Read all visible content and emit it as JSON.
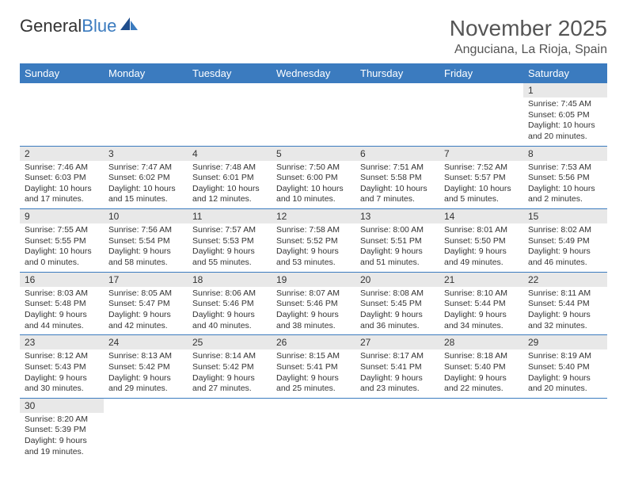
{
  "logo": {
    "text1": "General",
    "text2": "Blue"
  },
  "header": {
    "month": "November 2025",
    "location": "Anguciana, La Rioja, Spain"
  },
  "colors": {
    "header_bg": "#3b7bbf",
    "header_text": "#ffffff",
    "daynum_bg": "#e8e8e8",
    "border": "#3b7bbf"
  },
  "weekdays": [
    "Sunday",
    "Monday",
    "Tuesday",
    "Wednesday",
    "Thursday",
    "Friday",
    "Saturday"
  ],
  "weeks": [
    [
      {
        "day": "",
        "sunrise": "",
        "sunset": "",
        "daylight": ""
      },
      {
        "day": "",
        "sunrise": "",
        "sunset": "",
        "daylight": ""
      },
      {
        "day": "",
        "sunrise": "",
        "sunset": "",
        "daylight": ""
      },
      {
        "day": "",
        "sunrise": "",
        "sunset": "",
        "daylight": ""
      },
      {
        "day": "",
        "sunrise": "",
        "sunset": "",
        "daylight": ""
      },
      {
        "day": "",
        "sunrise": "",
        "sunset": "",
        "daylight": ""
      },
      {
        "day": "1",
        "sunrise": "Sunrise: 7:45 AM",
        "sunset": "Sunset: 6:05 PM",
        "daylight": "Daylight: 10 hours and 20 minutes."
      }
    ],
    [
      {
        "day": "2",
        "sunrise": "Sunrise: 7:46 AM",
        "sunset": "Sunset: 6:03 PM",
        "daylight": "Daylight: 10 hours and 17 minutes."
      },
      {
        "day": "3",
        "sunrise": "Sunrise: 7:47 AM",
        "sunset": "Sunset: 6:02 PM",
        "daylight": "Daylight: 10 hours and 15 minutes."
      },
      {
        "day": "4",
        "sunrise": "Sunrise: 7:48 AM",
        "sunset": "Sunset: 6:01 PM",
        "daylight": "Daylight: 10 hours and 12 minutes."
      },
      {
        "day": "5",
        "sunrise": "Sunrise: 7:50 AM",
        "sunset": "Sunset: 6:00 PM",
        "daylight": "Daylight: 10 hours and 10 minutes."
      },
      {
        "day": "6",
        "sunrise": "Sunrise: 7:51 AM",
        "sunset": "Sunset: 5:58 PM",
        "daylight": "Daylight: 10 hours and 7 minutes."
      },
      {
        "day": "7",
        "sunrise": "Sunrise: 7:52 AM",
        "sunset": "Sunset: 5:57 PM",
        "daylight": "Daylight: 10 hours and 5 minutes."
      },
      {
        "day": "8",
        "sunrise": "Sunrise: 7:53 AM",
        "sunset": "Sunset: 5:56 PM",
        "daylight": "Daylight: 10 hours and 2 minutes."
      }
    ],
    [
      {
        "day": "9",
        "sunrise": "Sunrise: 7:55 AM",
        "sunset": "Sunset: 5:55 PM",
        "daylight": "Daylight: 10 hours and 0 minutes."
      },
      {
        "day": "10",
        "sunrise": "Sunrise: 7:56 AM",
        "sunset": "Sunset: 5:54 PM",
        "daylight": "Daylight: 9 hours and 58 minutes."
      },
      {
        "day": "11",
        "sunrise": "Sunrise: 7:57 AM",
        "sunset": "Sunset: 5:53 PM",
        "daylight": "Daylight: 9 hours and 55 minutes."
      },
      {
        "day": "12",
        "sunrise": "Sunrise: 7:58 AM",
        "sunset": "Sunset: 5:52 PM",
        "daylight": "Daylight: 9 hours and 53 minutes."
      },
      {
        "day": "13",
        "sunrise": "Sunrise: 8:00 AM",
        "sunset": "Sunset: 5:51 PM",
        "daylight": "Daylight: 9 hours and 51 minutes."
      },
      {
        "day": "14",
        "sunrise": "Sunrise: 8:01 AM",
        "sunset": "Sunset: 5:50 PM",
        "daylight": "Daylight: 9 hours and 49 minutes."
      },
      {
        "day": "15",
        "sunrise": "Sunrise: 8:02 AM",
        "sunset": "Sunset: 5:49 PM",
        "daylight": "Daylight: 9 hours and 46 minutes."
      }
    ],
    [
      {
        "day": "16",
        "sunrise": "Sunrise: 8:03 AM",
        "sunset": "Sunset: 5:48 PM",
        "daylight": "Daylight: 9 hours and 44 minutes."
      },
      {
        "day": "17",
        "sunrise": "Sunrise: 8:05 AM",
        "sunset": "Sunset: 5:47 PM",
        "daylight": "Daylight: 9 hours and 42 minutes."
      },
      {
        "day": "18",
        "sunrise": "Sunrise: 8:06 AM",
        "sunset": "Sunset: 5:46 PM",
        "daylight": "Daylight: 9 hours and 40 minutes."
      },
      {
        "day": "19",
        "sunrise": "Sunrise: 8:07 AM",
        "sunset": "Sunset: 5:46 PM",
        "daylight": "Daylight: 9 hours and 38 minutes."
      },
      {
        "day": "20",
        "sunrise": "Sunrise: 8:08 AM",
        "sunset": "Sunset: 5:45 PM",
        "daylight": "Daylight: 9 hours and 36 minutes."
      },
      {
        "day": "21",
        "sunrise": "Sunrise: 8:10 AM",
        "sunset": "Sunset: 5:44 PM",
        "daylight": "Daylight: 9 hours and 34 minutes."
      },
      {
        "day": "22",
        "sunrise": "Sunrise: 8:11 AM",
        "sunset": "Sunset: 5:44 PM",
        "daylight": "Daylight: 9 hours and 32 minutes."
      }
    ],
    [
      {
        "day": "23",
        "sunrise": "Sunrise: 8:12 AM",
        "sunset": "Sunset: 5:43 PM",
        "daylight": "Daylight: 9 hours and 30 minutes."
      },
      {
        "day": "24",
        "sunrise": "Sunrise: 8:13 AM",
        "sunset": "Sunset: 5:42 PM",
        "daylight": "Daylight: 9 hours and 29 minutes."
      },
      {
        "day": "25",
        "sunrise": "Sunrise: 8:14 AM",
        "sunset": "Sunset: 5:42 PM",
        "daylight": "Daylight: 9 hours and 27 minutes."
      },
      {
        "day": "26",
        "sunrise": "Sunrise: 8:15 AM",
        "sunset": "Sunset: 5:41 PM",
        "daylight": "Daylight: 9 hours and 25 minutes."
      },
      {
        "day": "27",
        "sunrise": "Sunrise: 8:17 AM",
        "sunset": "Sunset: 5:41 PM",
        "daylight": "Daylight: 9 hours and 23 minutes."
      },
      {
        "day": "28",
        "sunrise": "Sunrise: 8:18 AM",
        "sunset": "Sunset: 5:40 PM",
        "daylight": "Daylight: 9 hours and 22 minutes."
      },
      {
        "day": "29",
        "sunrise": "Sunrise: 8:19 AM",
        "sunset": "Sunset: 5:40 PM",
        "daylight": "Daylight: 9 hours and 20 minutes."
      }
    ],
    [
      {
        "day": "30",
        "sunrise": "Sunrise: 8:20 AM",
        "sunset": "Sunset: 5:39 PM",
        "daylight": "Daylight: 9 hours and 19 minutes."
      },
      {
        "day": "",
        "sunrise": "",
        "sunset": "",
        "daylight": ""
      },
      {
        "day": "",
        "sunrise": "",
        "sunset": "",
        "daylight": ""
      },
      {
        "day": "",
        "sunrise": "",
        "sunset": "",
        "daylight": ""
      },
      {
        "day": "",
        "sunrise": "",
        "sunset": "",
        "daylight": ""
      },
      {
        "day": "",
        "sunrise": "",
        "sunset": "",
        "daylight": ""
      },
      {
        "day": "",
        "sunrise": "",
        "sunset": "",
        "daylight": ""
      }
    ]
  ]
}
